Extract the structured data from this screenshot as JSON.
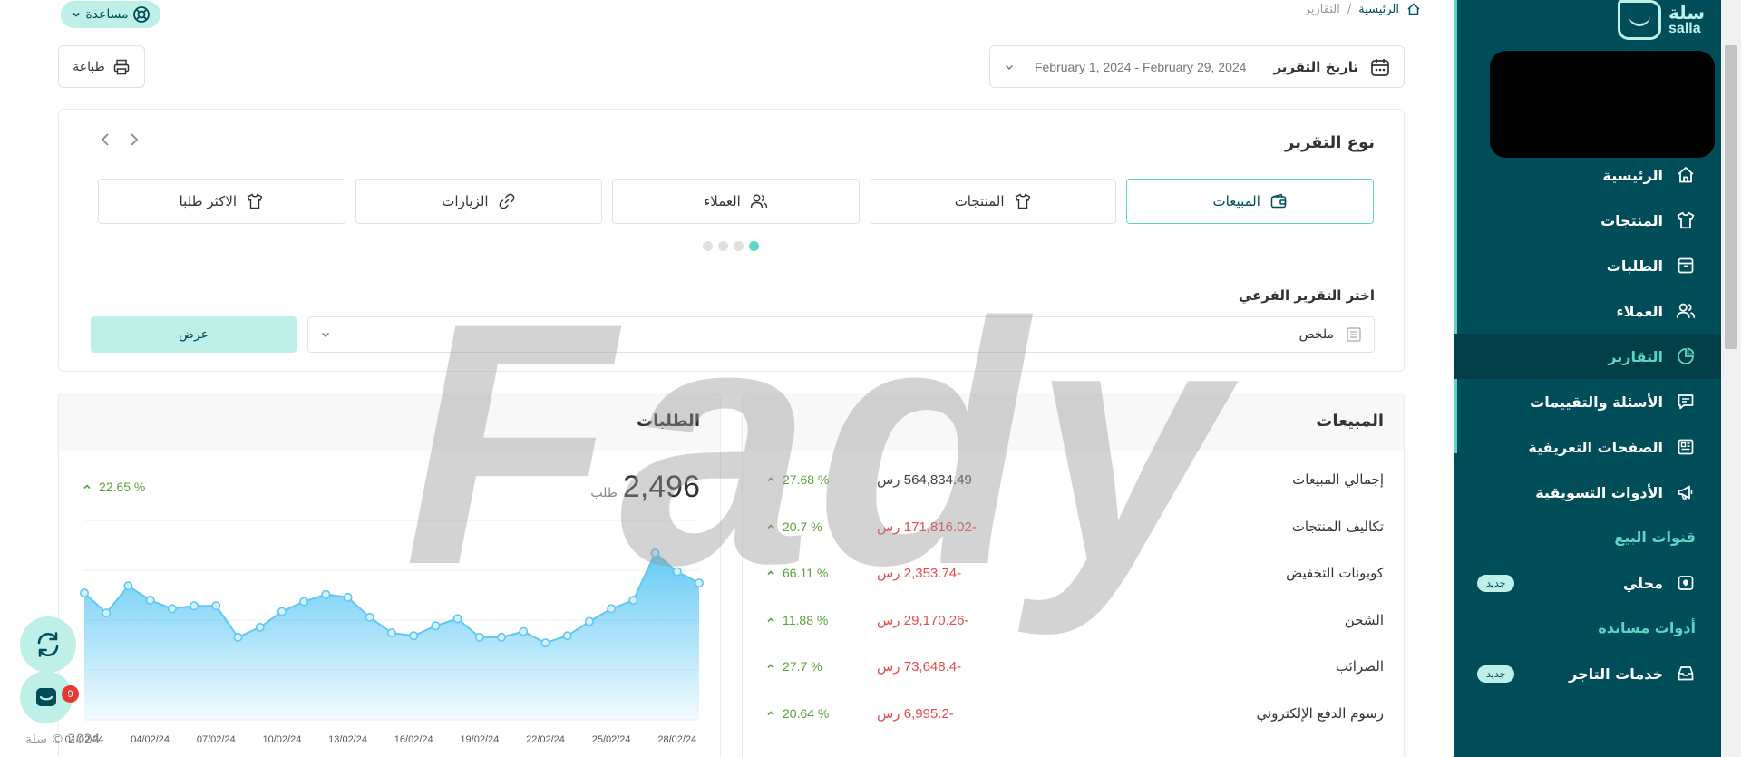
{
  "brand": {
    "logo_ar": "سلة",
    "logo_en": "salla"
  },
  "help": {
    "label": "مساعدة"
  },
  "breadcrumb": {
    "home": "الرئيسية",
    "separator": "/",
    "current": "التقارير"
  },
  "toolbar": {
    "print_label": "طباعة",
    "date_label": "تاريخ التقرير",
    "date_value": "February 1, 2024 - February 29, 2024"
  },
  "report_type": {
    "title": "نوع التقرير",
    "tiles": [
      {
        "label": "المبيعات",
        "icon": "wallet-icon",
        "active": true
      },
      {
        "label": "المنتجات",
        "icon": "shirt-icon",
        "active": false
      },
      {
        "label": "العملاء",
        "icon": "users-icon",
        "active": false
      },
      {
        "label": "الزيارات",
        "icon": "link-icon",
        "active": false
      },
      {
        "label": "الاكثر طلبا",
        "icon": "shirt-icon",
        "active": false
      }
    ],
    "sub_report_label": "اختر التقرير الفرعي",
    "sub_report_value": "ملخص",
    "show_label": "عرض"
  },
  "sales": {
    "title": "المبيعات",
    "currency": "رس",
    "rows": [
      {
        "label": "إجمالي المبيعات",
        "amount": "564,834.49",
        "negative": false,
        "pct": "27.68 %"
      },
      {
        "label": "تكاليف المنتجات",
        "amount": "-171,816.02",
        "negative": true,
        "pct": "20.7 %"
      },
      {
        "label": "كوبونات التخفيض",
        "amount": "-2,353.74",
        "negative": true,
        "pct": "66.11 %"
      },
      {
        "label": "الشحن",
        "amount": "-29,170.26",
        "negative": true,
        "pct": "11.88 %"
      },
      {
        "label": "الضرائب",
        "amount": "-73,648.4",
        "negative": true,
        "pct": "27.7 %"
      },
      {
        "label": "رسوم الدفع الإلكتروني",
        "amount": "-6,995.2",
        "negative": true,
        "pct": "20.64 %"
      }
    ]
  },
  "orders": {
    "title": "الطلبات",
    "total": "2,496",
    "unit": "طلب",
    "pct": "22.65 %"
  },
  "chart_data": {
    "type": "area",
    "title": "",
    "xlabel": "",
    "ylabel": "",
    "x": [
      "01/02/24",
      "02/02/24",
      "03/02/24",
      "04/02/24",
      "05/02/24",
      "06/02/24",
      "07/02/24",
      "08/02/24",
      "09/02/24",
      "10/02/24",
      "11/02/24",
      "12/02/24",
      "13/02/24",
      "14/02/24",
      "15/02/24",
      "16/02/24",
      "17/02/24",
      "18/02/24",
      "19/02/24",
      "20/02/24",
      "21/02/24",
      "22/02/24",
      "23/02/24",
      "24/02/24",
      "25/02/24",
      "26/02/24",
      "27/02/24",
      "28/02/24",
      "29/02/24"
    ],
    "x_ticks": [
      "01/02/24",
      "04/02/24",
      "07/02/24",
      "10/02/24",
      "13/02/24",
      "16/02/24",
      "19/02/24",
      "22/02/24",
      "25/02/24",
      "28/02/24"
    ],
    "values": [
      89,
      75,
      94,
      84,
      78,
      80,
      80,
      58,
      65,
      76,
      83,
      88,
      86,
      72,
      61,
      59,
      66,
      71,
      58,
      58,
      62,
      54,
      59,
      69,
      78,
      84,
      117,
      104,
      96
    ],
    "ylim": [
      0,
      140
    ],
    "grid": true,
    "color": "#5ec8f5"
  },
  "sidebar": {
    "items": [
      {
        "label": "الرئيسية",
        "icon": "home-icon",
        "active": false
      },
      {
        "label": "المنتجات",
        "icon": "shirt-icon",
        "active": false
      },
      {
        "label": "الطلبات",
        "icon": "orders-box-icon",
        "active": false
      },
      {
        "label": "العملاء",
        "icon": "users-icon",
        "active": false
      },
      {
        "label": "التقارير",
        "icon": "pie-chart-icon",
        "active": true
      },
      {
        "label": "الأسئلة والتقييمات",
        "icon": "comment-icon",
        "active": false
      },
      {
        "label": "الصفحات التعريفية",
        "icon": "newspaper-icon",
        "active": false
      },
      {
        "label": "الأدوات التسويقية",
        "icon": "megaphone-icon",
        "active": false
      }
    ],
    "sales_channels": {
      "title": "قنوات البيع",
      "items": [
        {
          "label": "محلي",
          "badge": "جديد"
        }
      ]
    },
    "support_tools": {
      "title": "أدوات مساندة",
      "items": [
        {
          "label": "خدمات التاجر",
          "badge": "جديد"
        }
      ]
    }
  },
  "footer": {
    "copyright": "2024 © سلة"
  },
  "floating": {
    "notification_count": "9"
  },
  "watermark": {
    "text": "Fady"
  }
}
